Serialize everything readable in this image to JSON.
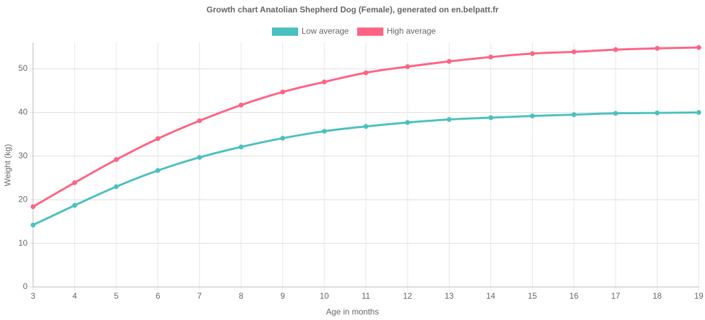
{
  "chart_data": {
    "type": "line",
    "title": "Growth chart Anatolian Shepherd Dog (Female), generated on en.belpatt.fr",
    "x_label": "Age in months",
    "y_label": "Weight (kg)",
    "x": [
      3,
      4,
      5,
      6,
      7,
      8,
      9,
      10,
      11,
      12,
      13,
      14,
      15,
      16,
      17,
      18,
      19
    ],
    "xlim": [
      3,
      19
    ],
    "xticks": [
      3,
      4,
      5,
      6,
      7,
      8,
      9,
      10,
      11,
      12,
      13,
      14,
      15,
      16,
      17,
      18,
      19
    ],
    "ylim": [
      0,
      56
    ],
    "yticks": [
      0,
      10,
      20,
      30,
      40,
      50
    ],
    "grid": true,
    "legend": "top",
    "series": [
      {
        "name": "Low average",
        "color": "#4bc0c0",
        "values": [
          14.2,
          18.7,
          23.0,
          26.7,
          29.7,
          32.1,
          34.1,
          35.7,
          36.8,
          37.7,
          38.4,
          38.8,
          39.2,
          39.5,
          39.8,
          39.9,
          40.0
        ]
      },
      {
        "name": "High average",
        "color": "#ff6384",
        "values": [
          18.4,
          23.9,
          29.2,
          34.0,
          38.1,
          41.7,
          44.7,
          47.0,
          49.1,
          50.5,
          51.7,
          52.7,
          53.5,
          53.9,
          54.4,
          54.7,
          54.9
        ]
      }
    ]
  }
}
